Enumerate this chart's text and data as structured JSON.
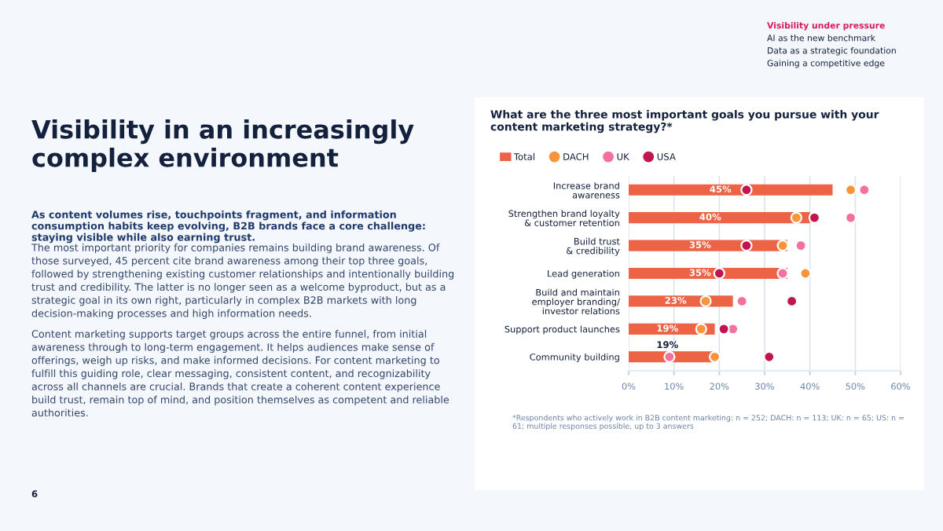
{
  "chart_data": {
    "type": "bar",
    "orientation": "horizontal",
    "title": "What are the three most important goals you pursue with your content marketing strategy?*",
    "categories": [
      "Increase brand\nawareness",
      "Strengthen brand loyalty\n& customer retention",
      "Build trust\n& credibility",
      "Lead generation",
      "Build and maintain\nemployer branding/\ninvestor relations",
      "Support product launches",
      "Community building"
    ],
    "series": [
      {
        "name": "Total",
        "color": "#ec6445",
        "values": [
          45,
          40,
          35,
          35,
          23,
          19,
          19
        ],
        "value_labels": [
          "45%",
          "40%",
          "35%",
          "35%",
          "23%",
          "19%",
          "19%"
        ]
      },
      {
        "name": "DACH",
        "type": "scatter",
        "color": "#f7943c",
        "values": [
          49,
          37,
          34,
          39,
          17,
          16,
          19
        ]
      },
      {
        "name": "UK",
        "type": "scatter",
        "color": "#f4709e",
        "values": [
          52,
          49,
          38,
          34,
          25,
          23,
          9
        ]
      },
      {
        "name": "USA",
        "type": "scatter",
        "color": "#c0154f",
        "values": [
          26,
          41,
          26,
          20,
          36,
          21,
          31
        ]
      }
    ],
    "xlim": [
      0,
      60
    ],
    "xticks": [
      {
        "value": 0,
        "label": "0%"
      },
      {
        "value": 10,
        "label": "10%"
      },
      {
        "value": 20,
        "label": "20%"
      },
      {
        "value": 30,
        "label": "30%"
      },
      {
        "value": 40,
        "label": "40%"
      },
      {
        "value": 50,
        "label": "50%"
      },
      {
        "value": 60,
        "label": "60%"
      }
    ],
    "grid": "x",
    "legend": "top left",
    "marker": "circle",
    "annotations": [
      "Visibility under pressure",
      "AI as the new benchmark",
      "Data as a strategic foundation",
      "Gaining a competitive edge",
      "Visibility in an increasingly complex environment",
      "As content volumes rise, touchpoints fragment, and information consumption habits keep evolving, B2B brands face a core challenge: staying visible while also earning trust.",
      "The most important priority for companies remains building brand awareness. Of those surveyed, 45 percent cite brand awareness among their top three goals, followed by strengthening existing customer relationships and intentionally building trust and credibility. The latter is no longer seen as a welcome byproduct, but as a strategic goal in its own right, particularly in complex B2B markets with long decision-making processes and high information needs.",
      "Content marketing supports target groups across the entire funnel, from initial awareness through to long-term engagement. It helps audiences make sense of offerings, weigh up risks, and make informed decisions. For content marketing to fulfill this guiding role, clear messaging, consistent content, and recognizability across all channels are crucial. Brands that create a coherent content experience build trust, remain top of mind, and position themselves as competent and reliable authorities.",
      "6",
      "*Respondents who actively work in B2B content marketing: n = 252; DACH: n = 113; UK: n = 65; US: n = 61; multiple responses possible, up to 3 answers"
    ]
  }
}
